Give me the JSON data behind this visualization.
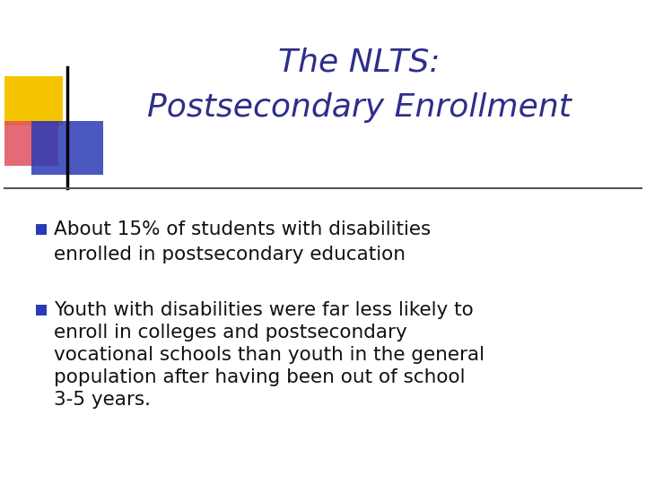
{
  "title_line1": "The NLTS:",
  "title_line2": "Postsecondary Enrollment",
  "title_color": "#2E2E8B",
  "title_fontsize": 26,
  "bullet_color": "#2B3BB5",
  "bullet_text_color": "#111111",
  "bullet_fontsize": 15.5,
  "background_color": "#FFFFFF",
  "bullet1_line1": "About 15% of students with disabilities",
  "bullet1_line2": "enrolled in postsecondary education",
  "bullet2_line1": "Youth with disabilities were far less likely to",
  "bullet2_line2": "enroll in colleges and postsecondary",
  "bullet2_line3": "vocational schools than youth in the general",
  "bullet2_line4": "population after having been out of school",
  "bullet2_line5": "3-5 years.",
  "separator_color": "#555555",
  "logo_yellow_color": "#F5C400",
  "logo_red_color": "#E05060",
  "logo_blue_color": "#2B3BB5"
}
